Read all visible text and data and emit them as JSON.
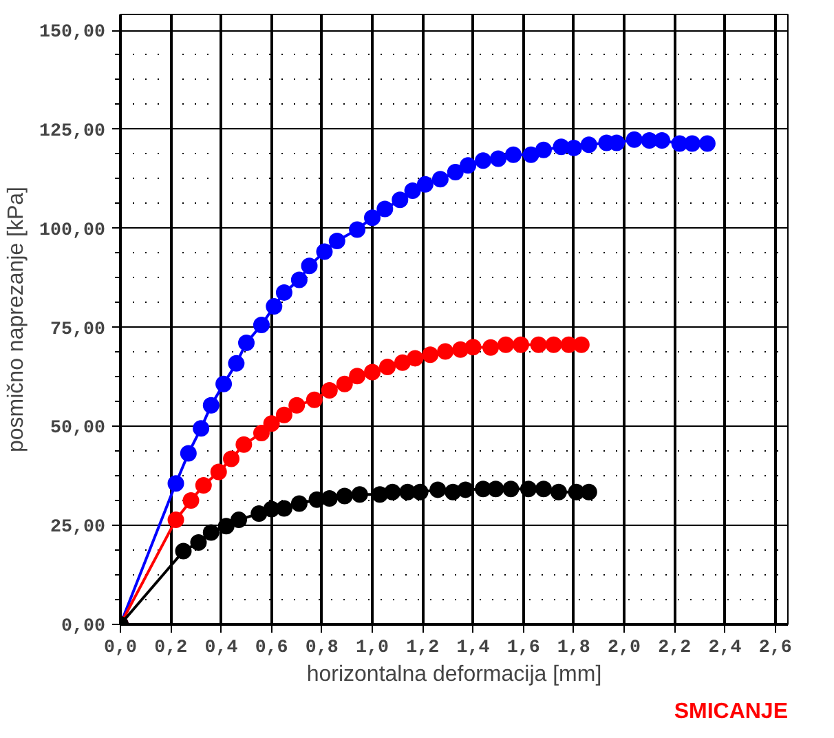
{
  "chart_data": {
    "type": "line",
    "xlabel": "horizontalna deformacija [mm]",
    "ylabel": "posmično naprezanje [kPa]",
    "annotations": [
      "SMICANJE"
    ],
    "xlim": [
      0,
      2.65
    ],
    "ylim": [
      0,
      154
    ],
    "xticks": [
      {
        "value": 0,
        "label": "0,0"
      },
      {
        "value": 0.2,
        "label": "0,2"
      },
      {
        "value": 0.4,
        "label": "0,4"
      },
      {
        "value": 0.6,
        "label": "0,6"
      },
      {
        "value": 0.8,
        "label": "0,8"
      },
      {
        "value": 1.0,
        "label": "1,0"
      },
      {
        "value": 1.2,
        "label": "1,2"
      },
      {
        "value": 1.4,
        "label": "1,4"
      },
      {
        "value": 1.6,
        "label": "1,6"
      },
      {
        "value": 1.8,
        "label": "1,8"
      },
      {
        "value": 2.0,
        "label": "2,0"
      },
      {
        "value": 2.2,
        "label": "2,2"
      },
      {
        "value": 2.4,
        "label": "2,4"
      },
      {
        "value": 2.6,
        "label": "2,6"
      }
    ],
    "yticks": [
      {
        "value": 0,
        "label": "0,00"
      },
      {
        "value": 25,
        "label": "25,00"
      },
      {
        "value": 50,
        "label": "50,00"
      },
      {
        "value": 75,
        "label": "75,00"
      },
      {
        "value": 100,
        "label": "100,00"
      },
      {
        "value": 125,
        "label": "125,00"
      },
      {
        "value": 150,
        "label": "150,00"
      }
    ],
    "grid": true,
    "marker": "circle",
    "line_style": "solid",
    "series": [
      {
        "color": "#0000ff",
        "x": [
          0,
          0.22,
          0.27,
          0.32,
          0.36,
          0.41,
          0.46,
          0.5,
          0.56,
          0.61,
          0.65,
          0.71,
          0.75,
          0.81,
          0.86,
          0.94,
          1.0,
          1.05,
          1.11,
          1.16,
          1.21,
          1.27,
          1.33,
          1.38,
          1.44,
          1.5,
          1.56,
          1.63,
          1.68,
          1.75,
          1.8,
          1.86,
          1.93,
          1.97,
          2.04,
          2.1,
          2.15,
          2.22,
          2.27,
          2.33
        ],
        "values": [
          0,
          35.6,
          43.2,
          49.5,
          55.3,
          60.7,
          65.9,
          71.1,
          75.6,
          80.3,
          83.8,
          87.0,
          90.5,
          94.1,
          96.8,
          99.7,
          102.7,
          104.9,
          107.2,
          109.5,
          111.1,
          112.4,
          114.2,
          115.9,
          117.1,
          117.6,
          118.6,
          118.6,
          119.8,
          120.6,
          120.3,
          121.1,
          121.6,
          121.6,
          122.4,
          122.2,
          122.2,
          121.4,
          121.4,
          121.4
        ]
      },
      {
        "color": "#ff0000",
        "x": [
          0,
          0.22,
          0.28,
          0.33,
          0.39,
          0.44,
          0.49,
          0.56,
          0.6,
          0.65,
          0.7,
          0.77,
          0.83,
          0.89,
          0.94,
          1.0,
          1.06,
          1.12,
          1.17,
          1.23,
          1.29,
          1.35,
          1.4,
          1.47,
          1.53,
          1.59,
          1.66,
          1.72,
          1.78,
          1.83
        ],
        "values": [
          0,
          26.4,
          31.3,
          35.1,
          38.5,
          41.8,
          45.4,
          48.3,
          50.7,
          52.9,
          55.3,
          56.7,
          59.1,
          60.7,
          62.7,
          63.7,
          65.0,
          66.1,
          67.2,
          68.1,
          68.9,
          69.4,
          70.0,
          69.9,
          70.6,
          70.6,
          70.6,
          70.6,
          70.6,
          70.6
        ]
      },
      {
        "color": "#000000",
        "x": [
          0,
          0.25,
          0.31,
          0.36,
          0.42,
          0.47,
          0.55,
          0.6,
          0.65,
          0.71,
          0.78,
          0.83,
          0.89,
          0.95,
          1.03,
          1.08,
          1.14,
          1.19,
          1.26,
          1.32,
          1.37,
          1.44,
          1.49,
          1.55,
          1.62,
          1.68,
          1.74,
          1.81,
          1.86
        ],
        "values": [
          0,
          18.5,
          20.7,
          23.2,
          24.8,
          26.4,
          28.0,
          29.1,
          29.3,
          30.5,
          31.5,
          31.8,
          32.4,
          32.8,
          32.8,
          33.4,
          33.4,
          33.4,
          34.0,
          33.4,
          34.0,
          34.2,
          34.2,
          34.2,
          34.2,
          34.2,
          33.4,
          33.4,
          33.4
        ]
      }
    ]
  }
}
